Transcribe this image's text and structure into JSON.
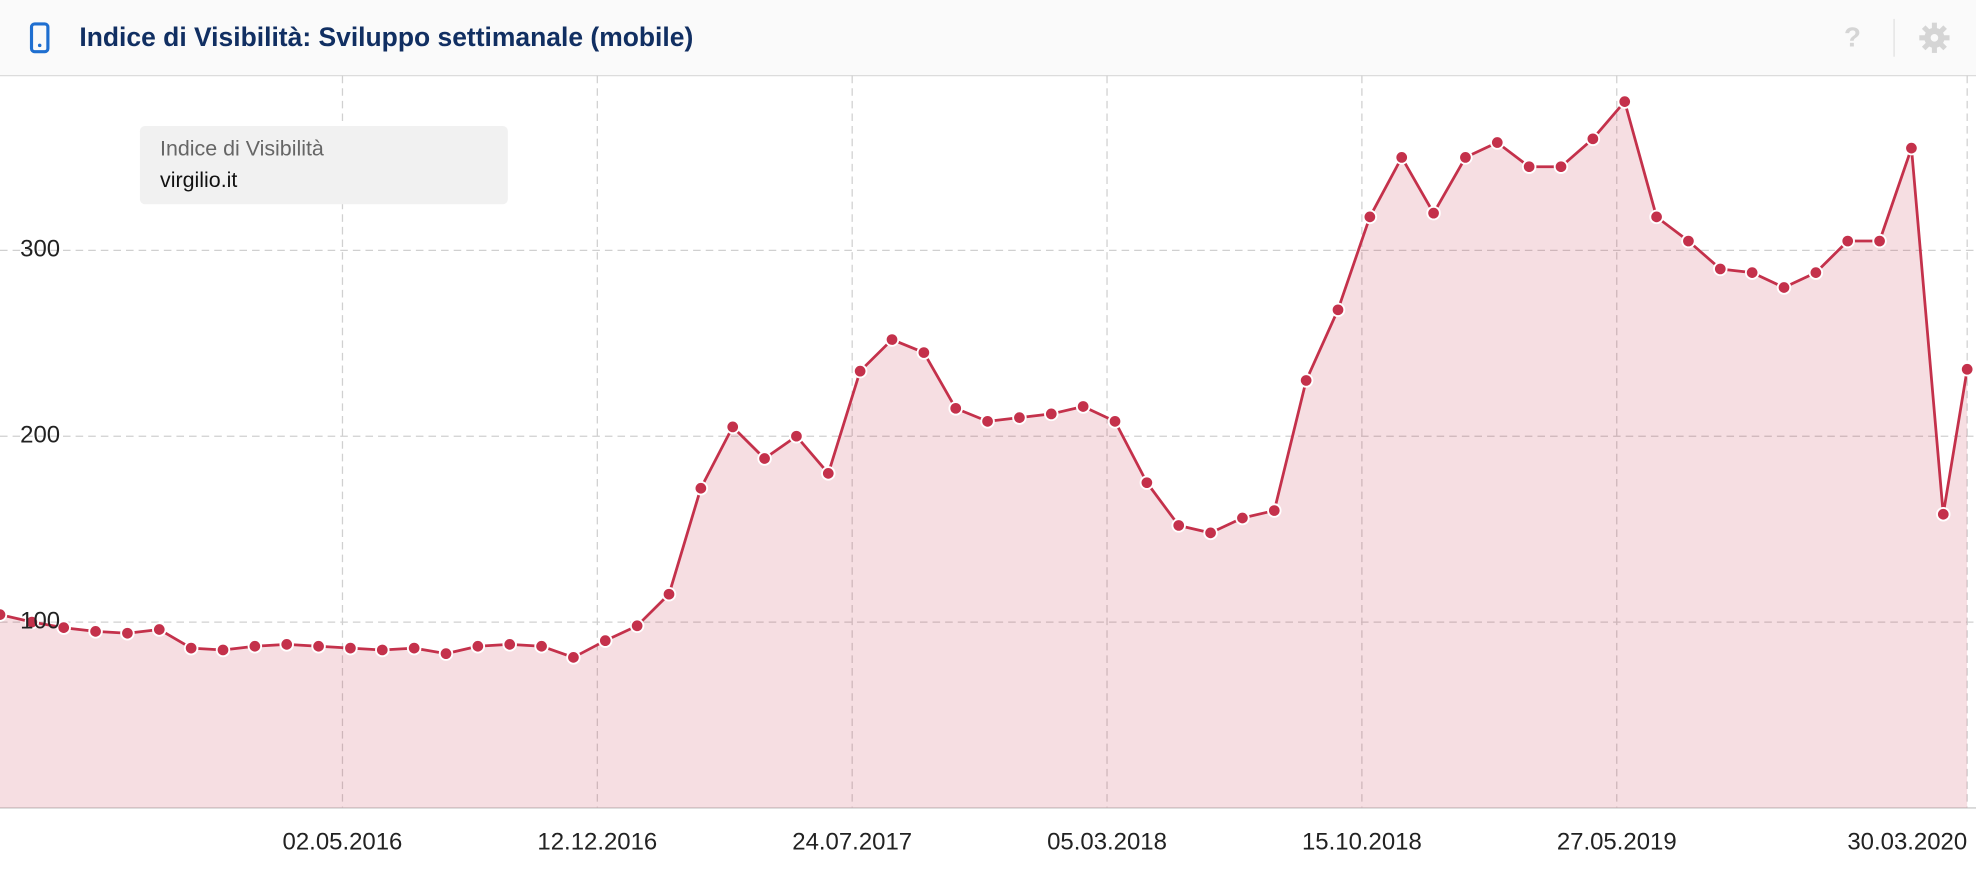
{
  "header": {
    "title": "Indice di Visibilità: Sviluppo settimanale (mobile)"
  },
  "chart_data": {
    "type": "area",
    "legend_title": "Indice di Visibilità",
    "x": [
      "06.07.2015",
      "03.08.2015",
      "31.08.2015",
      "28.09.2015",
      "26.10.2015",
      "23.11.2015",
      "21.12.2015",
      "18.01.2016",
      "15.02.2016",
      "14.03.2016",
      "11.04.2016",
      "09.05.2016",
      "06.06.2016",
      "04.07.2016",
      "01.08.2016",
      "29.08.2016",
      "26.09.2016",
      "24.10.2016",
      "21.11.2016",
      "19.12.2016",
      "16.01.2017",
      "13.02.2017",
      "13.03.2017",
      "10.04.2017",
      "08.05.2017",
      "05.06.2017",
      "03.07.2017",
      "31.07.2017",
      "28.08.2017",
      "25.09.2017",
      "23.10.2017",
      "20.11.2017",
      "18.12.2017",
      "15.01.2018",
      "12.02.2018",
      "12.03.2018",
      "09.04.2018",
      "07.05.2018",
      "04.06.2018",
      "02.07.2018",
      "30.07.2018",
      "27.08.2018",
      "24.09.2018",
      "22.10.2018",
      "19.11.2018",
      "17.12.2018",
      "14.01.2019",
      "11.02.2019",
      "11.03.2019",
      "08.04.2019",
      "06.05.2019",
      "03.06.2019",
      "01.07.2019",
      "29.07.2019",
      "26.08.2019",
      "23.09.2019",
      "21.10.2019",
      "18.11.2019",
      "16.12.2019",
      "13.01.2020",
      "10.02.2020",
      "09.03.2020",
      "30.03.2020"
    ],
    "series": [
      {
        "name": "virgilio.it",
        "color": "#c4314b",
        "values": [
          104,
          100,
          97,
          95,
          94,
          96,
          86,
          85,
          87,
          88,
          87,
          86,
          85,
          86,
          83,
          87,
          88,
          87,
          81,
          90,
          98,
          115,
          172,
          205,
          188,
          200,
          180,
          235,
          252,
          245,
          215,
          208,
          210,
          212,
          216,
          208,
          175,
          152,
          148,
          156,
          160,
          230,
          268,
          318,
          350,
          320,
          350,
          358,
          345,
          345,
          360,
          380,
          318,
          305,
          290,
          288,
          280,
          288,
          305,
          305,
          355,
          158,
          236
        ]
      }
    ],
    "xlim": [
      "06.07.2015",
      "30.03.2020"
    ],
    "xticks": [
      "02.05.2016",
      "12.12.2016",
      "24.07.2017",
      "05.03.2018",
      "15.10.2018",
      "27.05.2019",
      "30.03.2020"
    ],
    "ylim": [
      0,
      394
    ],
    "yticks": [
      100,
      200,
      300
    ],
    "grid": true
  }
}
